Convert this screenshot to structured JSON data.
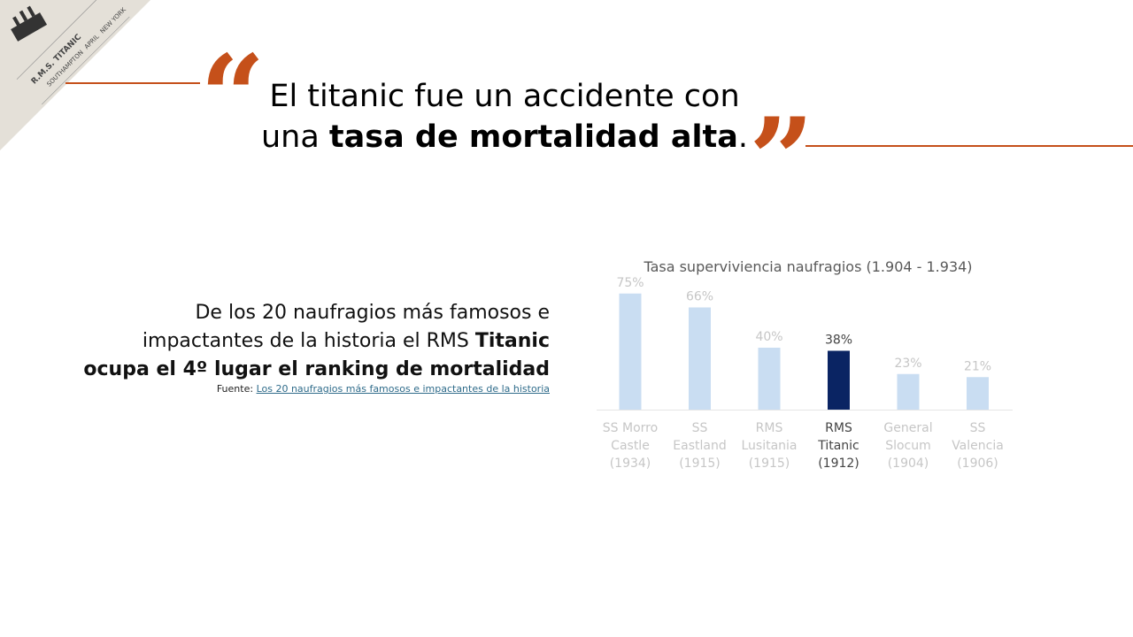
{
  "headline": {
    "part1": "El titanic fue un accidente con una ",
    "bold": "tasa de mortalidad alta",
    "end": "."
  },
  "description": {
    "part1": "De los 20 naufragios más famosos e impactantes de la historia el RMS ",
    "bold": "Titanic ocupa el 4º lugar el ranking de mortalidad"
  },
  "source": {
    "label": "Fuente: ",
    "link_text": "Los 20 naufragios más famosos e impactantes de la historia"
  },
  "ticket": {
    "lines": [
      "R.M.S. TITANIC",
      "SOUTHAMPTON",
      "APRIL",
      "NEW YORK"
    ]
  },
  "colors": {
    "accent": "#c5501a",
    "bar_default": "#c9ddf2",
    "bar_highlight": "#0a2463",
    "label_faded": "#c6c6c6",
    "label_highlight": "#444444"
  },
  "chart_data": {
    "type": "bar",
    "title": "Tasa superviviencia naufragios (1.904  - 1.934)",
    "categories": [
      [
        "SS Morro",
        "Castle",
        "(1934)"
      ],
      [
        "SS",
        "Eastland",
        "(1915)"
      ],
      [
        "RMS",
        "Lusitania",
        "(1915)"
      ],
      [
        "RMS",
        "Titanic",
        "(1912)"
      ],
      [
        "General",
        "Slocum",
        "(1904)"
      ],
      [
        "SS",
        "Valencia",
        "(1906)"
      ]
    ],
    "values": [
      75,
      66,
      40,
      38,
      23,
      21
    ],
    "value_labels": [
      "75%",
      "66%",
      "40%",
      "38%",
      "23%",
      "21%"
    ],
    "highlight_index": 3,
    "ylim": [
      0,
      100
    ],
    "grid": false,
    "legend": "none"
  }
}
